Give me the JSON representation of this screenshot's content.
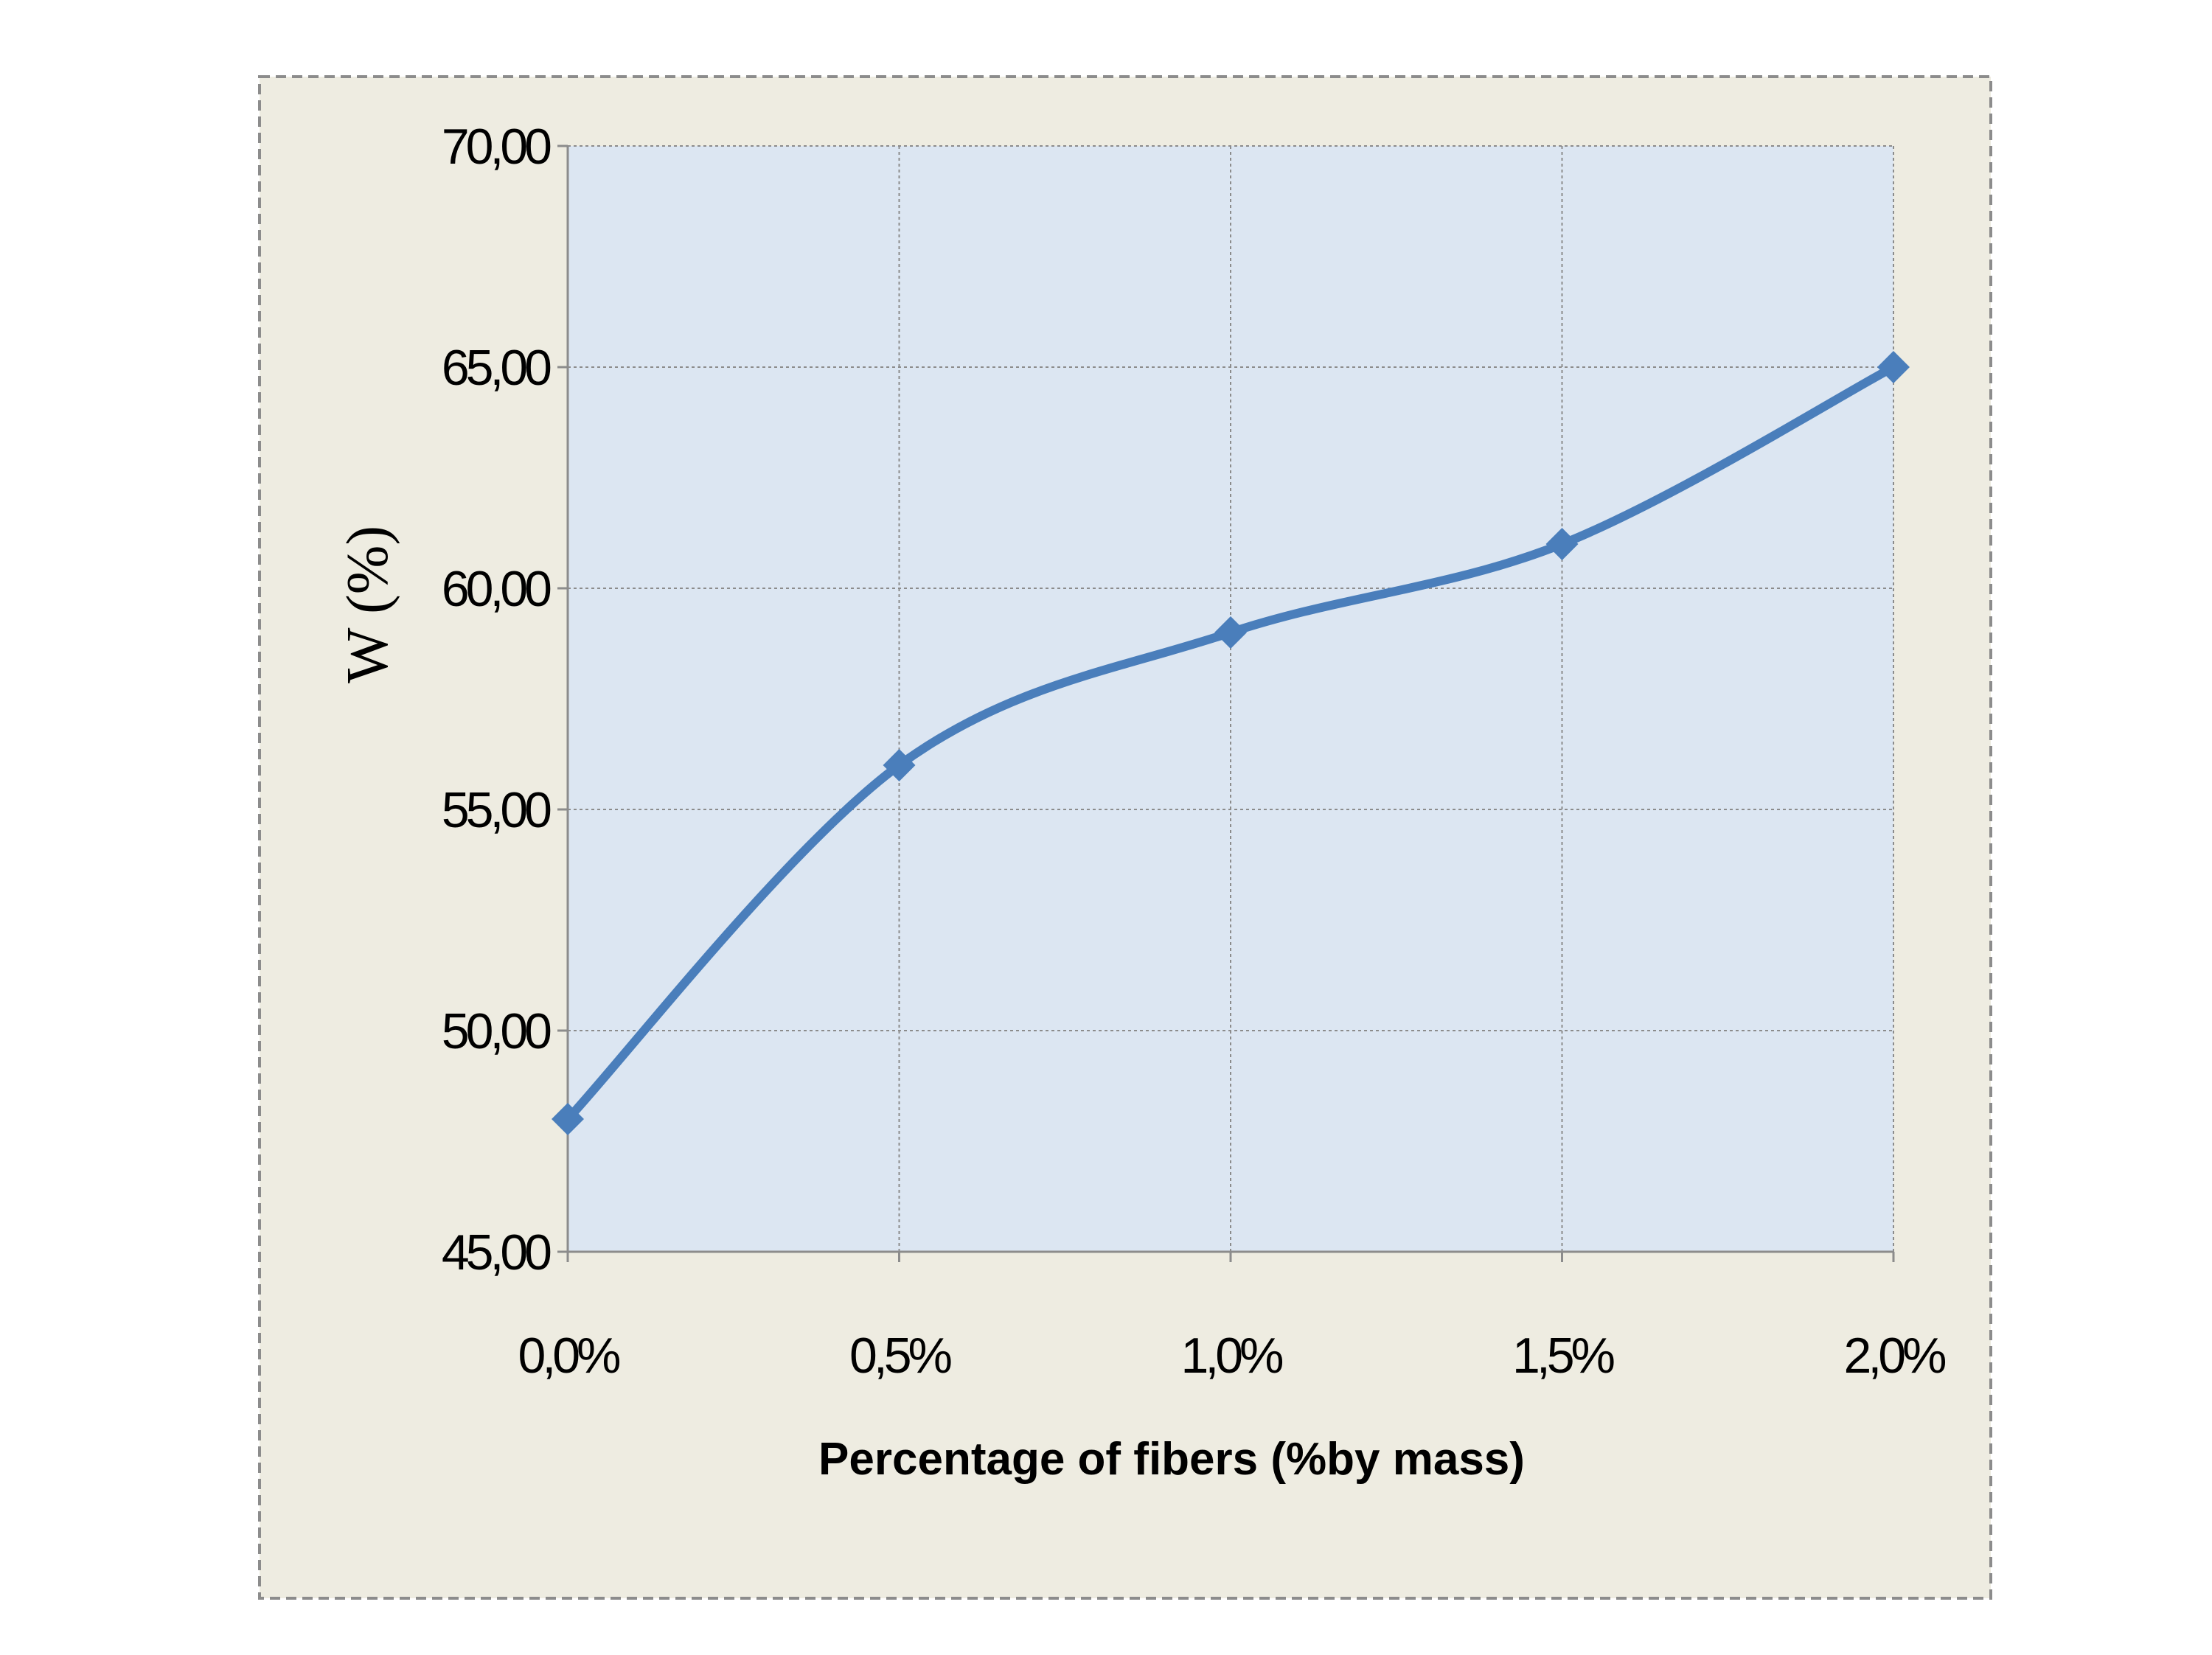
{
  "chart_data": {
    "type": "line",
    "title": "",
    "xlabel": "Percentage of fibers (%by mass)",
    "ylabel": "W (%)",
    "categories": [
      "0,0%",
      "0,5%",
      "1,0%",
      "1,5%",
      "2,0%"
    ],
    "series": [
      {
        "values": [
          48.0,
          56.0,
          59.0,
          61.0,
          65.0
        ]
      }
    ],
    "ylim": [
      45,
      70
    ],
    "yticks": [
      45,
      50,
      55,
      60,
      65,
      70
    ],
    "ytick_labels": [
      "45,00",
      "50,00",
      "55,00",
      "60,00",
      "65,00",
      "70,00"
    ],
    "grid": true,
    "smooth": true,
    "marker": "diamond",
    "colors": {
      "line": "#4a7ebb",
      "plot_bg": "#dce6f2",
      "chart_bg": "#eeece1",
      "border": "#8c8c8c",
      "grid": "#8c8c8c"
    }
  }
}
